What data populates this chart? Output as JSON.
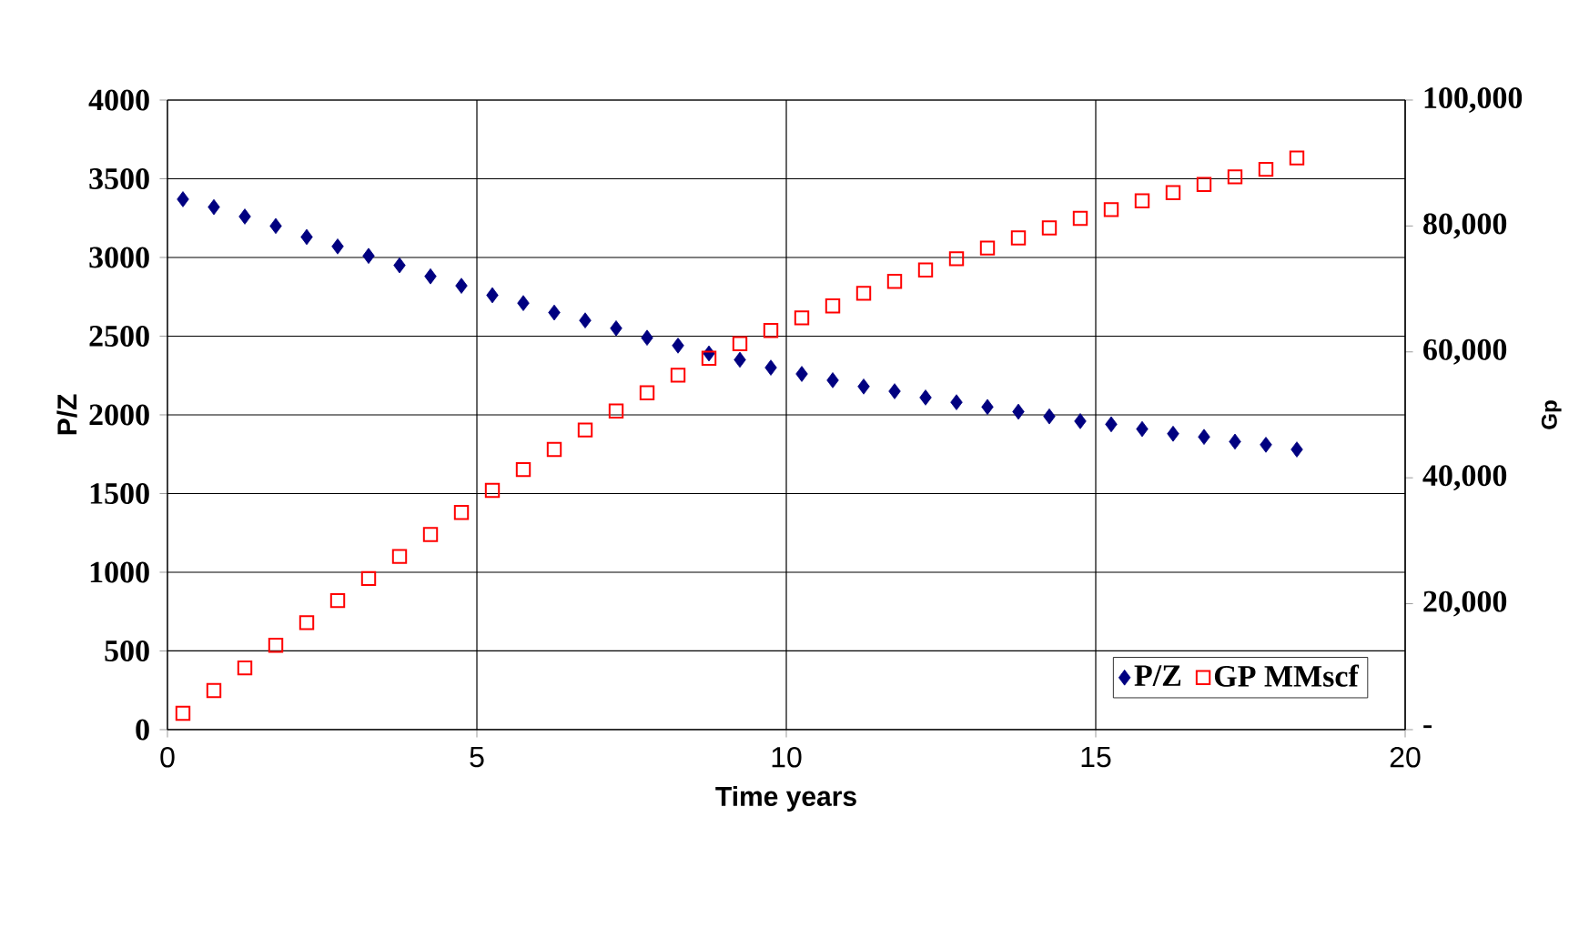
{
  "chart_data": {
    "type": "scatter",
    "xlabel": "Time years",
    "ylabel": "P/Z",
    "y2label": "Gp",
    "xlim": [
      0,
      20
    ],
    "xticks": [
      0,
      5,
      10,
      15,
      20
    ],
    "ylim": [
      0,
      4000
    ],
    "yticks": [
      0,
      500,
      1000,
      1500,
      2000,
      2500,
      3000,
      3500,
      4000
    ],
    "y2lim": [
      0,
      100000
    ],
    "y2ticks": [
      {
        "value": 0,
        "label": "-"
      },
      {
        "value": 20000,
        "label": "20,000"
      },
      {
        "value": 40000,
        "label": "40,000"
      },
      {
        "value": 60000,
        "label": "60,000"
      },
      {
        "value": 80000,
        "label": "80,000"
      },
      {
        "value": 100000,
        "label": "100,000"
      }
    ],
    "grid": true,
    "legend": "bottom right",
    "x": [
      0.25,
      0.75,
      1.25,
      1.75,
      2.25,
      2.75,
      3.25,
      3.75,
      4.25,
      4.75,
      5.25,
      5.75,
      6.25,
      6.75,
      7.25,
      7.75,
      8.25,
      8.75,
      9.25,
      9.75,
      10.25,
      10.75,
      11.25,
      11.75,
      12.25,
      12.75,
      13.25,
      13.75,
      14.25,
      14.75,
      15.25,
      15.75,
      16.25,
      16.75,
      17.25,
      17.75,
      18.25
    ],
    "series": [
      {
        "name": "P/Z",
        "color": "#000080",
        "marker": "diamond",
        "values": [
          3370,
          3320,
          3260,
          3200,
          3130,
          3070,
          3010,
          2950,
          2880,
          2820,
          2760,
          2710,
          2650,
          2600,
          2550,
          2490,
          2440,
          2390,
          2350,
          2300,
          2260,
          2220,
          2180,
          2150,
          2110,
          2080,
          2050,
          2020,
          1990,
          1960,
          1940,
          1910,
          1880,
          1860,
          1830,
          1810,
          1780
        ]
      },
      {
        "name": "GP MMscf",
        "color": "#ff0000",
        "marker": "square",
        "axis": "y2",
        "values": [
          2600,
          6200,
          9800,
          13400,
          17000,
          20500,
          24000,
          27500,
          31000,
          34500,
          38000,
          41300,
          44500,
          47600,
          50600,
          53500,
          56300,
          59000,
          61300,
          63400,
          65400,
          67300,
          69300,
          71200,
          73000,
          74800,
          76500,
          78100,
          79700,
          81200,
          82600,
          84000,
          85300,
          86600,
          87800,
          89000,
          90800
        ]
      }
    ]
  }
}
